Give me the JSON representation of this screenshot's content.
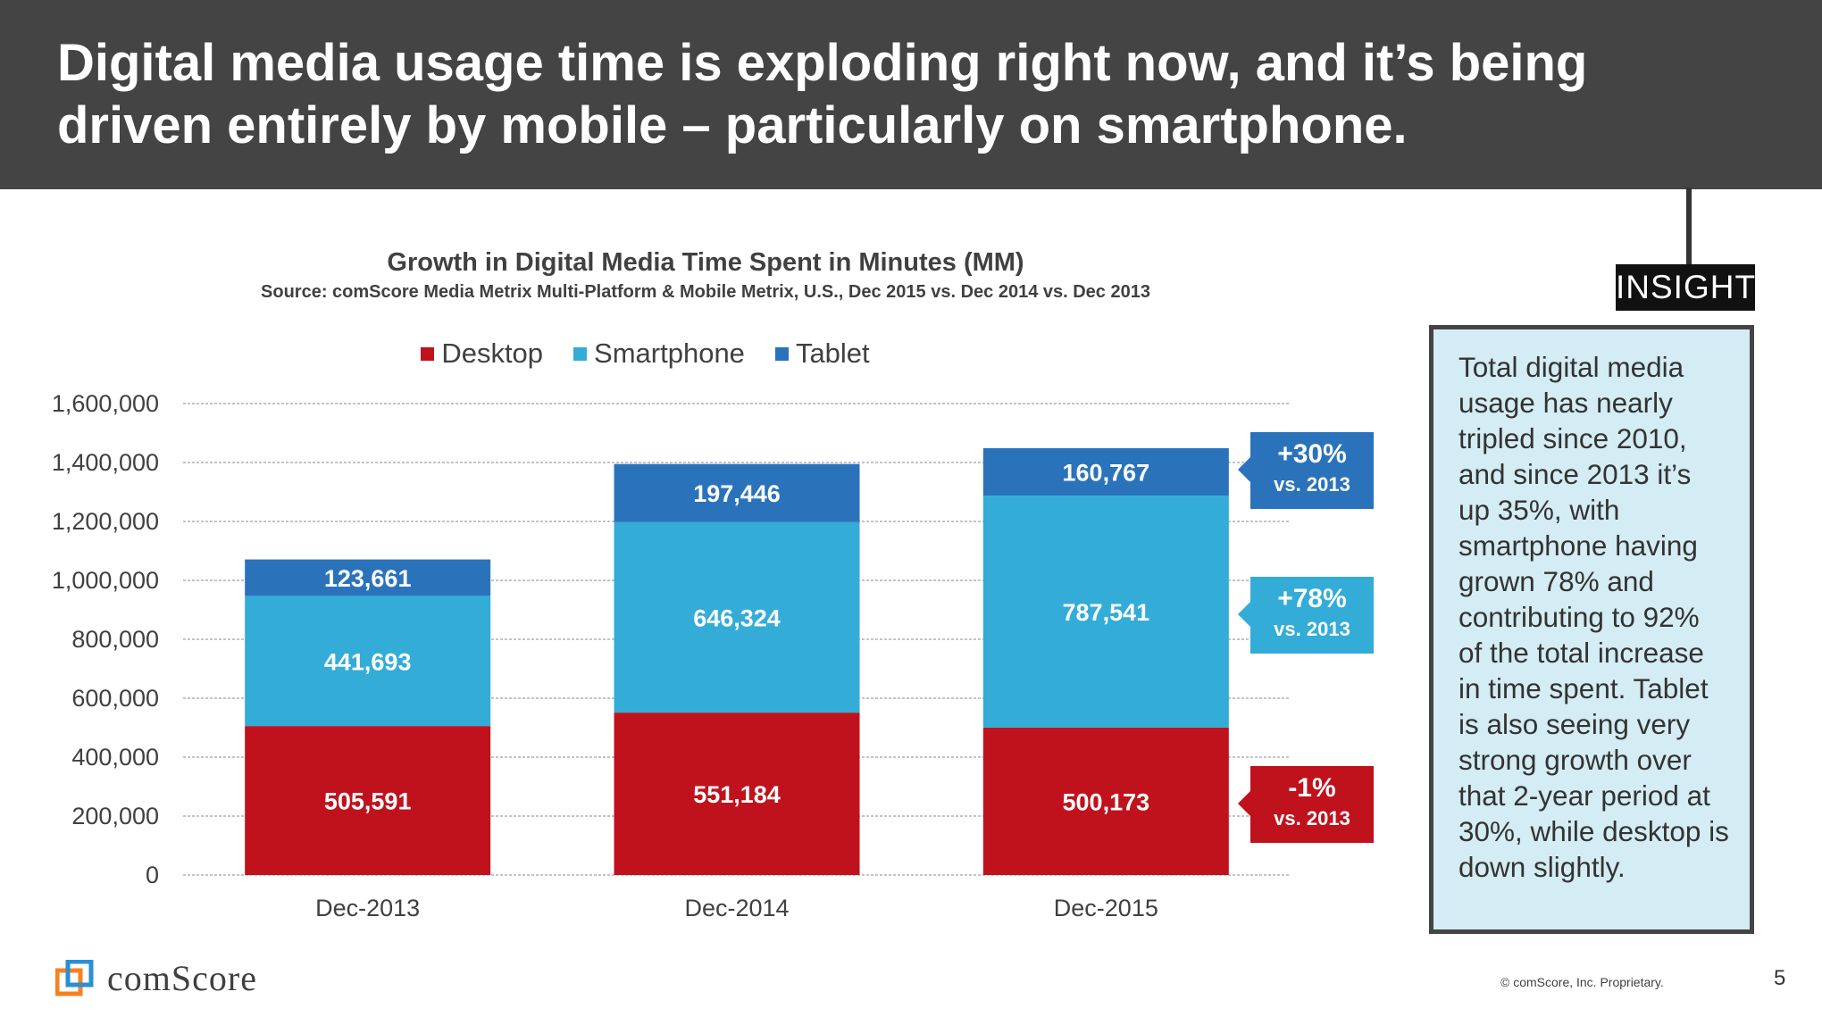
{
  "header": {
    "title": "Digital media usage time is exploding right now, and it’s being driven entirely by mobile – particularly on smartphone."
  },
  "chart_data": {
    "type": "bar",
    "stacked": true,
    "title": "Growth in Digital Media Time Spent in Minutes (MM)",
    "subtitle": "Source: comScore Media Metrix Multi-Platform & Mobile Metrix, U.S., Dec 2015 vs. Dec 2014 vs. Dec 2013",
    "categories": [
      "Dec-2013",
      "Dec-2014",
      "Dec-2015"
    ],
    "series": [
      {
        "name": "Desktop",
        "color": "#c0121c",
        "values": [
          505591,
          551184,
          500173
        ],
        "labels": [
          "505,591",
          "551,184",
          "500,173"
        ]
      },
      {
        "name": "Smartphone",
        "color": "#33acd8",
        "values": [
          441693,
          646324,
          787541
        ],
        "labels": [
          "441,693",
          "646,324",
          "787,541"
        ]
      },
      {
        "name": "Tablet",
        "color": "#2a73bb",
        "values": [
          123661,
          197446,
          160767
        ],
        "labels": [
          "123,661",
          "197,446",
          "160,767"
        ]
      }
    ],
    "ylim": [
      0,
      1600000
    ],
    "yticks": [
      "0",
      "200,000",
      "400,000",
      "600,000",
      "800,000",
      "1,000,000",
      "1,200,000",
      "1,400,000",
      "1,600,000"
    ],
    "grid": true,
    "legend_position": "top-center"
  },
  "callouts": [
    {
      "pct": "+30%",
      "vs": "vs. 2013",
      "color": "#2a73bb"
    },
    {
      "pct": "+78%",
      "vs": "vs. 2013",
      "color": "#33acd8"
    },
    {
      "pct": "-1%",
      "vs": "vs. 2013",
      "color": "#c0121c"
    }
  ],
  "insight": {
    "tag": "INSIGHT",
    "text": "Total digital media usage has nearly tripled since 2010, and since 2013 it’s up 35%, with smartphone having grown 78% and contributing to 92% of the total increase in time spent. Tablet is also seeing very strong growth over that 2-year period at 30%, while desktop is down slightly."
  },
  "footer": {
    "brand": "comScore",
    "copyright": "© comScore, Inc. Proprietary.",
    "page": "5"
  }
}
